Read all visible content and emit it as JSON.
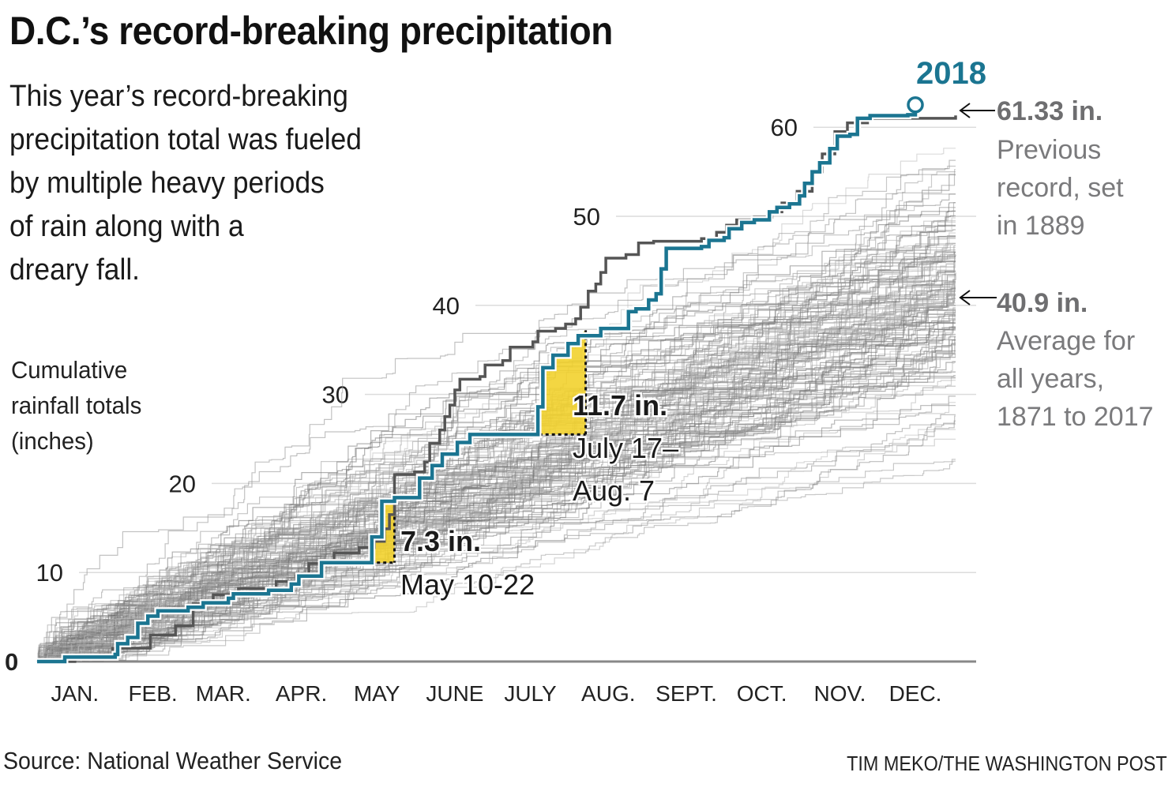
{
  "header": {
    "title": "D.C.’s record-breaking precipitation",
    "intro_lines": [
      "This year’s record-breaking",
      "precipitation total was fueled",
      "by multiple heavy periods",
      "of rain along with a",
      "dreary fall."
    ]
  },
  "footer": {
    "source": "Source: National Weather Service",
    "credit": "TIM MEKO/THE WASHINGTON POST"
  },
  "colors": {
    "highlight_2018": "#1b7591",
    "record_1889": "#555555",
    "historical": "#8a8a8a",
    "heavy_period_fill": "#f2d22e",
    "side_text": "#6e6e70"
  },
  "chart_data": {
    "type": "line",
    "title": "D.C.’s record-breaking precipitation",
    "ylabel_lines": [
      "Cumulative",
      "rainfall totals",
      "(inches)"
    ],
    "xlabel": "",
    "ylim": [
      0,
      65
    ],
    "xlim_day_of_year": [
      0,
      365
    ],
    "y_ticks": [
      0,
      10,
      20,
      30,
      40,
      50,
      60
    ],
    "y_tick_labels": [
      "0",
      "10",
      "20",
      "30",
      "40",
      "50",
      "60"
    ],
    "x_tick_labels": [
      "JAN.",
      "FEB.",
      "MAR.",
      "APR.",
      "MAY",
      "JUNE",
      "JULY",
      "AUG.",
      "SEPT.",
      "OCT.",
      "NOV.",
      "DEC."
    ],
    "x_tick_days": [
      15,
      46,
      74,
      105,
      135,
      166,
      196,
      227,
      258,
      288,
      319,
      349
    ],
    "grid": true,
    "series": [
      {
        "name": "2018",
        "label": "2018",
        "emphasis": "highlight",
        "points": [
          [
            0,
            0
          ],
          [
            10,
            0
          ],
          [
            11,
            0.5
          ],
          [
            30,
            0.5
          ],
          [
            31,
            0.8
          ],
          [
            32,
            2.0
          ],
          [
            36,
            2.7
          ],
          [
            40,
            4.3
          ],
          [
            44,
            5.1
          ],
          [
            48,
            5.7
          ],
          [
            60,
            6.1
          ],
          [
            66,
            6.6
          ],
          [
            76,
            7.1
          ],
          [
            78,
            7.6
          ],
          [
            92,
            8.0
          ],
          [
            101,
            8.7
          ],
          [
            104,
            9.6
          ],
          [
            113,
            11.1
          ],
          [
            130,
            11.1
          ],
          [
            133,
            14.0
          ],
          [
            137,
            18.0
          ],
          [
            142,
            18.4
          ],
          [
            151,
            18.4
          ],
          [
            152,
            20.6
          ],
          [
            157,
            22.0
          ],
          [
            161,
            23.3
          ],
          [
            167,
            24.6
          ],
          [
            172,
            25.5
          ],
          [
            197,
            25.5
          ],
          [
            199,
            28.6
          ],
          [
            201,
            33.0
          ],
          [
            205,
            34.4
          ],
          [
            211,
            35.7
          ],
          [
            215,
            36.6
          ],
          [
            224,
            37.4
          ],
          [
            230,
            37.4
          ],
          [
            235,
            39.3
          ],
          [
            238,
            39.6
          ],
          [
            243,
            40.6
          ],
          [
            246,
            41.3
          ],
          [
            248,
            44.1
          ],
          [
            250,
            46.4
          ],
          [
            264,
            46.6
          ],
          [
            267,
            47.3
          ],
          [
            273,
            47.6
          ],
          [
            275,
            48.6
          ],
          [
            280,
            49.3
          ],
          [
            285,
            49.6
          ],
          [
            291,
            50.5
          ],
          [
            294,
            51.0
          ],
          [
            299,
            51.4
          ],
          [
            303,
            52.3
          ],
          [
            305,
            53.7
          ],
          [
            308,
            55.0
          ],
          [
            311,
            56.0
          ],
          [
            315,
            57.6
          ],
          [
            318,
            59.0
          ],
          [
            323,
            59.2
          ],
          [
            326,
            61.0
          ],
          [
            331,
            61.3
          ],
          [
            346,
            61.4
          ],
          [
            349,
            62.7
          ]
        ],
        "end_marker": "circle"
      },
      {
        "name": "1889",
        "label": "Previous record, set in 1889",
        "emphasis": "record",
        "points": [
          [
            0,
            0
          ],
          [
            15,
            0.6
          ],
          [
            30,
            1.5
          ],
          [
            45,
            3.0
          ],
          [
            55,
            4.0
          ],
          [
            62,
            6.5
          ],
          [
            70,
            7.5
          ],
          [
            80,
            8.2
          ],
          [
            95,
            9.0
          ],
          [
            103,
            9.6
          ],
          [
            108,
            11.0
          ],
          [
            118,
            12.2
          ],
          [
            128,
            12.8
          ],
          [
            134,
            13.5
          ],
          [
            138,
            14.9
          ],
          [
            140,
            16.5
          ],
          [
            142,
            21.0
          ],
          [
            150,
            21.3
          ],
          [
            154,
            22.4
          ],
          [
            156,
            24.5
          ],
          [
            160,
            26.0
          ],
          [
            162,
            27.5
          ],
          [
            164,
            28.8
          ],
          [
            166,
            30.5
          ],
          [
            168,
            31.7
          ],
          [
            176,
            32.0
          ],
          [
            178,
            33.3
          ],
          [
            185,
            33.8
          ],
          [
            188,
            35.3
          ],
          [
            197,
            35.9
          ],
          [
            199,
            37.1
          ],
          [
            206,
            37.4
          ],
          [
            210,
            37.9
          ],
          [
            214,
            38.5
          ],
          [
            216,
            39.8
          ],
          [
            219,
            41.6
          ],
          [
            222,
            42.4
          ],
          [
            224,
            43.7
          ],
          [
            226,
            45.3
          ],
          [
            234,
            45.7
          ],
          [
            239,
            47.0
          ],
          [
            245,
            47.2
          ],
          [
            264,
            47.5
          ],
          [
            270,
            48.2
          ],
          [
            274,
            49.0
          ],
          [
            278,
            49.6
          ],
          [
            285,
            49.9
          ],
          [
            292,
            50.5
          ],
          [
            296,
            51.5
          ],
          [
            302,
            52.8
          ],
          [
            308,
            55.0
          ],
          [
            312,
            57.0
          ],
          [
            317,
            59.5
          ],
          [
            322,
            60.5
          ],
          [
            330,
            61.0
          ],
          [
            365,
            61.33
          ]
        ]
      }
    ],
    "historical_range": {
      "label": "All years, 1871 to 2017",
      "first_year": 1871,
      "last_year": 2017,
      "year_end_min": 22.5,
      "year_end_max": 61.33,
      "year_end_average": 40.9
    },
    "highlighted_periods": [
      {
        "value_label": "7.3 in.",
        "date_label": "May 10-22",
        "start_day": 130,
        "end_day": 142,
        "start_value": 11.1,
        "end_value": 18.4
      },
      {
        "value_label": "11.7 in.",
        "date_label_lines": [
          "July 17–",
          "Aug. 7"
        ],
        "start_day": 197,
        "end_day": 218,
        "start_value": 25.5,
        "end_value": 37.2
      }
    ],
    "annotations": {
      "year_label": "2018",
      "record": {
        "value": "61.33 in.",
        "lines": [
          "Previous",
          "record, set",
          "in 1889"
        ]
      },
      "average": {
        "value": "40.9 in.",
        "lines": [
          "Average for",
          "all years,",
          "1871 to 2017"
        ]
      }
    }
  }
}
